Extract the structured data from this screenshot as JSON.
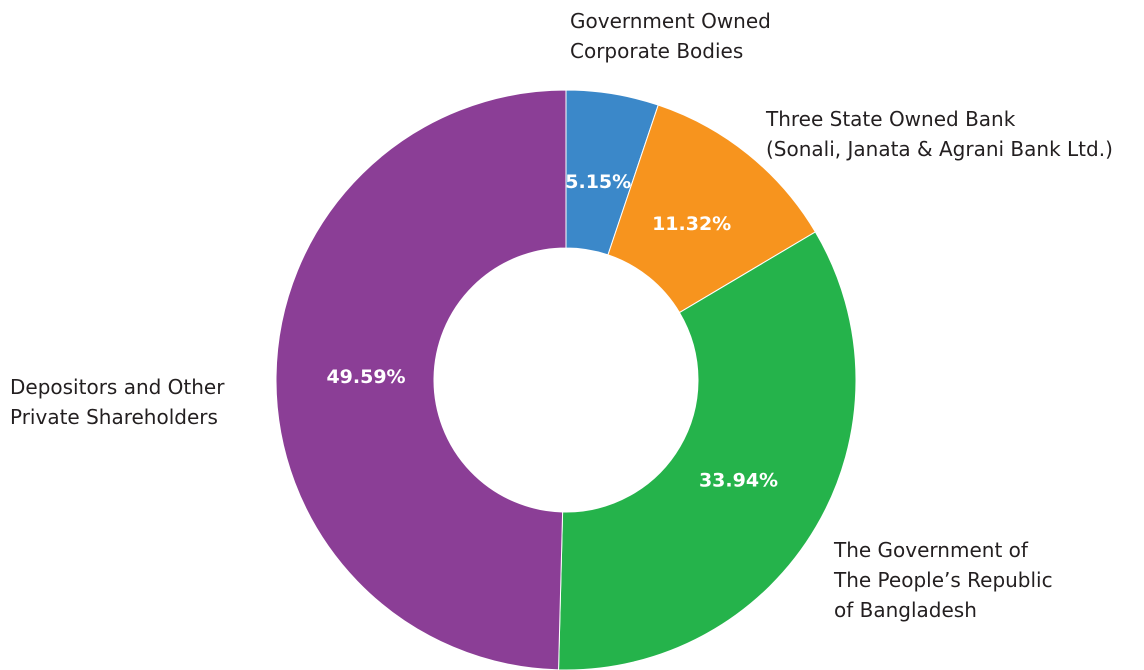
{
  "chart_data": {
    "type": "pie",
    "variant": "donut",
    "title": "",
    "slices": [
      {
        "label_lines": [
          "Government Owned",
          "Corporate Bodies"
        ],
        "value": 5.15,
        "value_label": "5.15%",
        "color": "#3b88c9"
      },
      {
        "label_lines": [
          "Three State Owned Bank",
          "(Sonali, Janata & Agrani Bank Ltd.)"
        ],
        "value": 11.32,
        "value_label": "11.32%",
        "color": "#f7941e"
      },
      {
        "label_lines": [
          "The Government of",
          "The People’s Republic",
          "of Bangladesh"
        ],
        "value": 33.94,
        "value_label": "33.94%",
        "color": "#25b34b"
      },
      {
        "label_lines": [
          "Depositors and Other",
          "Private Shareholders"
        ],
        "value": 49.59,
        "value_label": "49.59%",
        "color": "#8b3e96"
      }
    ],
    "legend": "none"
  }
}
